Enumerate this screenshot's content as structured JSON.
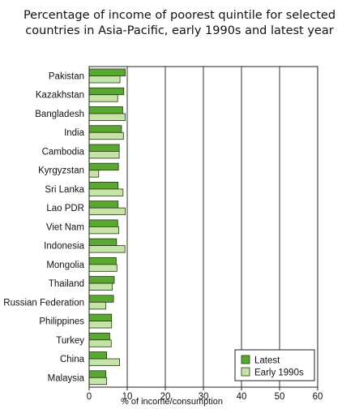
{
  "chart_data": {
    "type": "bar",
    "orientation": "horizontal",
    "title_lines": [
      "Percentage of income of poorest quintile for selected",
      "countries in Asia-Pacific, early 1990s and latest year"
    ],
    "xlabel": "% of income/consumption",
    "xlim": [
      0,
      60
    ],
    "xticks": [
      0,
      10,
      20,
      30,
      40,
      50,
      60
    ],
    "grid": "vertical",
    "legend_position": "bottom-right",
    "categories": [
      "Pakistan",
      "Kazakhstan",
      "Bangladesh",
      "India",
      "Cambodia",
      "Kyrgyzstan",
      "Sri Lanka",
      "Lao PDR",
      "Viet Nam",
      "Indonesia",
      "Mongolia",
      "Thailand",
      "Russian Federation",
      "Philippines",
      "Turkey",
      "China",
      "Malaysia"
    ],
    "series": [
      {
        "name": "Latest",
        "color": "#5aa832",
        "values": [
          9.5,
          9.1,
          8.8,
          8.5,
          7.9,
          7.7,
          7.6,
          7.6,
          7.5,
          7.2,
          7.1,
          6.6,
          6.4,
          5.9,
          5.4,
          4.6,
          4.4
        ]
      },
      {
        "name": "Early 1990s",
        "color": "#c6e3a8",
        "values": [
          8.1,
          7.5,
          9.5,
          9.0,
          7.9,
          2.5,
          8.9,
          9.5,
          7.8,
          9.4,
          7.3,
          6.1,
          4.4,
          5.9,
          5.8,
          8.0,
          4.6
        ]
      }
    ]
  }
}
